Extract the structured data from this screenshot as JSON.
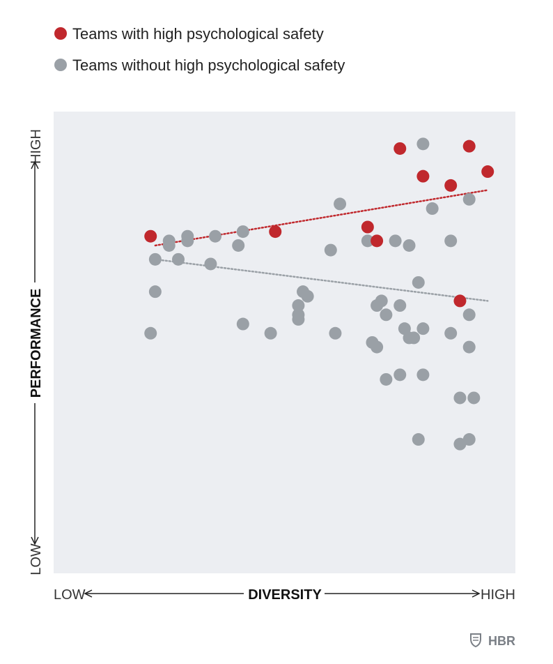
{
  "legend": {
    "high": "Teams with high psychological safety",
    "low": "Teams without high psychological safety"
  },
  "axes": {
    "x_low": "LOW",
    "x_title": "DIVERSITY",
    "x_high": "HIGH",
    "y_low": "LOW",
    "y_title": "PERFORMANCE",
    "y_high": "HIGH"
  },
  "brand": {
    "name": "HBR",
    "icon": "shield-icon"
  },
  "colors": {
    "high": "#c0282d",
    "low": "#9aa0a6",
    "plot_bg": "#eceef2"
  },
  "chart_data": {
    "type": "scatter",
    "xlabel": "DIVERSITY",
    "ylabel": "PERFORMANCE",
    "xlim": [
      0,
      100
    ],
    "ylim": [
      0,
      100
    ],
    "grid": false,
    "legend_position": "top-left",
    "series": [
      {
        "name": "Teams with high psychological safety",
        "color": "#c0282d",
        "points": [
          [
            21,
            73
          ],
          [
            48,
            74
          ],
          [
            68,
            75
          ],
          [
            70,
            72
          ],
          [
            75,
            92
          ],
          [
            80,
            86
          ],
          [
            86,
            84
          ],
          [
            90,
            92.5
          ],
          [
            94,
            87
          ],
          [
            88,
            59
          ]
        ],
        "trend": [
          [
            22,
            71
          ],
          [
            94,
            83
          ]
        ]
      },
      {
        "name": "Teams without high psychological safety",
        "color": "#9aa0a6",
        "points": [
          [
            21,
            52
          ],
          [
            22,
            61
          ],
          [
            22,
            68
          ],
          [
            25,
            72
          ],
          [
            25,
            71
          ],
          [
            27,
            68
          ],
          [
            29,
            73
          ],
          [
            29,
            72
          ],
          [
            35,
            73
          ],
          [
            34,
            67
          ],
          [
            40,
            71
          ],
          [
            41,
            54
          ],
          [
            41,
            74
          ],
          [
            47,
            52
          ],
          [
            53,
            58
          ],
          [
            53,
            56
          ],
          [
            54,
            61
          ],
          [
            53,
            55
          ],
          [
            55,
            60
          ],
          [
            60,
            70
          ],
          [
            61,
            52
          ],
          [
            62,
            80
          ],
          [
            68,
            72
          ],
          [
            69,
            50
          ],
          [
            70,
            49
          ],
          [
            70,
            58
          ],
          [
            71,
            59
          ],
          [
            72,
            42
          ],
          [
            72,
            56
          ],
          [
            74,
            72
          ],
          [
            75,
            58
          ],
          [
            75,
            43
          ],
          [
            76,
            53
          ],
          [
            77,
            51
          ],
          [
            77,
            71
          ],
          [
            78,
            51
          ],
          [
            79,
            29
          ],
          [
            79,
            63
          ],
          [
            80,
            43
          ],
          [
            80,
            53
          ],
          [
            80,
            93
          ],
          [
            82,
            79
          ],
          [
            86,
            72
          ],
          [
            86,
            52
          ],
          [
            88,
            38
          ],
          [
            88,
            28
          ],
          [
            90,
            81
          ],
          [
            90,
            49
          ],
          [
            90,
            56
          ],
          [
            90,
            29
          ],
          [
            91,
            38
          ]
        ],
        "trend": [
          [
            22,
            68
          ],
          [
            94,
            59
          ]
        ]
      }
    ]
  }
}
